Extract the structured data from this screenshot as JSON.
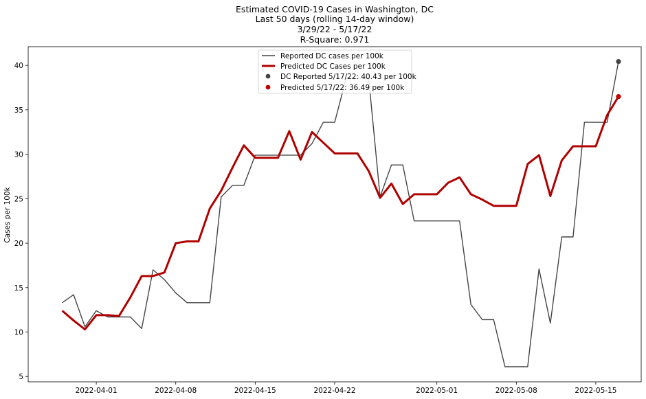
{
  "chart_data": {
    "type": "line",
    "title_lines": [
      "Estimated COVID-19 Cases in Washington, DC",
      "Last 50 days (rolling 14-day window)",
      "3/29/22 - 5/17/22",
      "R-Square: 0.971"
    ],
    "xlabel": "",
    "ylabel": "Cases per 100k",
    "x_range": [
      "2022-03-26",
      "2022-05-19"
    ],
    "ylim": [
      4.4,
      42.1
    ],
    "yticks": [
      5,
      10,
      15,
      20,
      25,
      30,
      35,
      40
    ],
    "xticks": [
      "2022-04-01",
      "2022-04-08",
      "2022-04-15",
      "2022-04-22",
      "2022-05-01",
      "2022-05-08",
      "2022-05-15"
    ],
    "grid": false,
    "legend_position": "top-center",
    "dates": [
      "2022-03-29",
      "2022-03-30",
      "2022-03-31",
      "2022-04-01",
      "2022-04-02",
      "2022-04-03",
      "2022-04-04",
      "2022-04-05",
      "2022-04-06",
      "2022-04-07",
      "2022-04-08",
      "2022-04-09",
      "2022-04-10",
      "2022-04-11",
      "2022-04-12",
      "2022-04-13",
      "2022-04-14",
      "2022-04-15",
      "2022-04-16",
      "2022-04-17",
      "2022-04-18",
      "2022-04-19",
      "2022-04-20",
      "2022-04-21",
      "2022-04-22",
      "2022-04-23",
      "2022-04-24",
      "2022-04-25",
      "2022-04-26",
      "2022-04-27",
      "2022-04-28",
      "2022-04-29",
      "2022-04-30",
      "2022-05-01",
      "2022-05-02",
      "2022-05-03",
      "2022-05-04",
      "2022-05-05",
      "2022-05-06",
      "2022-05-07",
      "2022-05-08",
      "2022-05-09",
      "2022-05-10",
      "2022-05-11",
      "2022-05-12",
      "2022-05-13",
      "2022-05-14",
      "2022-05-15",
      "2022-05-16",
      "2022-05-17"
    ],
    "series": [
      {
        "name": "Reported DC cases per 100k",
        "color": "#444444",
        "values": [
          13.3,
          14.2,
          10.6,
          12.4,
          11.7,
          11.7,
          11.7,
          10.4,
          17.0,
          15.9,
          14.4,
          13.3,
          13.3,
          13.3,
          25.2,
          26.5,
          26.5,
          29.9,
          29.9,
          29.9,
          29.9,
          29.9,
          31.2,
          33.6,
          33.6,
          38.5,
          38.5,
          38.5,
          25.2,
          28.8,
          28.8,
          22.5,
          22.5,
          22.5,
          22.5,
          22.5,
          13.1,
          11.4,
          11.4,
          6.1,
          6.1,
          6.1,
          17.1,
          11.0,
          20.7,
          20.7,
          33.6,
          33.6,
          33.6,
          40.43
        ]
      },
      {
        "name": "Predicted DC Cases per 100k",
        "color": "#b00000",
        "values": [
          12.4,
          11.3,
          10.3,
          11.9,
          11.9,
          11.8,
          13.9,
          16.3,
          16.3,
          16.7,
          20.0,
          20.2,
          20.2,
          23.9,
          25.9,
          28.5,
          31.0,
          29.6,
          29.6,
          29.6,
          32.6,
          29.4,
          32.5,
          31.3,
          30.1,
          30.1,
          30.1,
          28.1,
          25.1,
          26.7,
          24.4,
          25.5,
          25.5,
          25.5,
          26.8,
          27.4,
          25.5,
          24.9,
          24.2,
          24.2,
          24.2,
          28.9,
          29.9,
          25.3,
          29.3,
          30.9,
          30.9,
          30.9,
          34.4,
          36.49
        ]
      }
    ],
    "endpoints": [
      {
        "label": "DC Reported 5/17/22: 40.43 per 100k",
        "date": "2022-05-17",
        "value": 40.43,
        "color": "#444444"
      },
      {
        "label": "Predicted 5/17/22: 36.49 per 100k",
        "date": "2022-05-17",
        "value": 36.49,
        "color": "#c00000"
      }
    ]
  }
}
